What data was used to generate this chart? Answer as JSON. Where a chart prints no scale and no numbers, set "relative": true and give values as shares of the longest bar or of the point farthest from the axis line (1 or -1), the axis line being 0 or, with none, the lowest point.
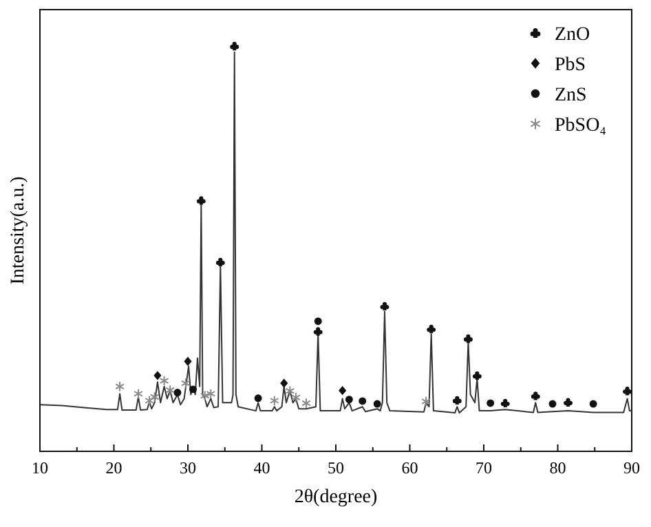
{
  "chart_data": {
    "type": "line",
    "xlabel": "2θ(degree)",
    "ylabel": "Intensity(a.u.)",
    "relative": true,
    "xlim": [
      10,
      90
    ],
    "xticks": [
      10,
      {
        "value": 15,
        "label": null
      },
      20,
      {
        "value": 25,
        "label": null
      },
      30,
      {
        "value": 35,
        "label": null
      },
      40,
      {
        "value": 45,
        "label": null
      },
      50,
      {
        "value": 55,
        "label": null
      },
      60,
      {
        "value": 65,
        "label": null
      },
      70,
      {
        "value": 75,
        "label": null
      },
      80,
      {
        "value": 85,
        "label": null
      },
      90
    ],
    "legend": "top right",
    "grid": false,
    "series": [
      {
        "color": "#333333",
        "marker": "none",
        "line_style": "solid",
        "x": [
          10,
          13,
          16,
          19,
          20.5,
          20.8,
          21.1,
          23.0,
          23.3,
          23.6,
          24.5,
          24.8,
          25.1,
          25.5,
          25.9,
          26.3,
          26.8,
          27.2,
          27.6,
          28.0,
          28.6,
          29.0,
          29.5,
          29.8,
          30.1,
          30.4,
          30.7,
          31.0,
          31.3,
          31.6,
          31.8,
          32.0,
          32.3,
          32.6,
          33.1,
          33.5,
          34.1,
          34.4,
          34.7,
          35.9,
          36.1,
          36.3,
          36.5,
          36.8,
          39.2,
          39.5,
          39.8,
          41.4,
          41.7,
          42.0,
          42.7,
          43.0,
          43.3,
          43.8,
          44.2,
          44.6,
          45.0,
          46.0,
          47.3,
          47.6,
          47.9,
          50.6,
          50.9,
          51.2,
          51.8,
          52.2,
          53.6,
          54.0,
          55.6,
          56.0,
          56.3,
          56.6,
          56.9,
          57.3,
          61.9,
          62.2,
          62.6,
          62.9,
          63.2,
          66.1,
          66.4,
          66.7,
          67.6,
          67.9,
          68.2,
          68.8,
          69.1,
          69.4,
          70.9,
          72.9,
          76.7,
          77.0,
          77.3,
          79.3,
          81.4,
          84.8,
          88.9,
          89.4,
          89.7,
          90
        ],
        "values": [
          0.115,
          0.113,
          0.108,
          0.103,
          0.103,
          0.142,
          0.102,
          0.102,
          0.134,
          0.102,
          0.103,
          0.122,
          0.105,
          0.12,
          0.171,
          0.12,
          0.16,
          0.13,
          0.15,
          0.12,
          0.14,
          0.115,
          0.13,
          0.17,
          0.21,
          0.14,
          0.16,
          0.14,
          0.23,
          0.16,
          0.61,
          0.14,
          0.13,
          0.11,
          0.13,
          0.108,
          0.11,
          0.46,
          0.12,
          0.12,
          0.14,
          0.985,
          0.14,
          0.11,
          0.1,
          0.12,
          0.1,
          0.1,
          0.11,
          0.1,
          0.11,
          0.16,
          0.12,
          0.15,
          0.12,
          0.13,
          0.105,
          0.105,
          0.11,
          0.29,
          0.1,
          0.1,
          0.13,
          0.105,
          0.12,
          0.1,
          0.11,
          0.098,
          0.105,
          0.1,
          0.12,
          0.345,
          0.12,
          0.1,
          0.097,
          0.12,
          0.11,
          0.29,
          0.1,
          0.095,
          0.11,
          0.095,
          0.11,
          0.27,
          0.14,
          0.12,
          0.18,
          0.1,
          0.1,
          0.103,
          0.096,
          0.12,
          0.096,
          0.098,
          0.1,
          0.096,
          0.096,
          0.13,
          0.1,
          0.1
        ]
      },
      {
        "type": "scatter",
        "name": "ZnO",
        "color": "#111111",
        "x": [
          31.8,
          34.4,
          36.3,
          47.6,
          56.6,
          62.9,
          66.4,
          67.9,
          69.1,
          72.9,
          77.0,
          81.4,
          89.4
        ],
        "values": [
          0.619,
          0.467,
          1.0,
          0.296,
          0.358,
          0.302,
          0.126,
          0.278,
          0.187,
          0.119,
          0.137,
          0.121,
          0.149
        ]
      },
      {
        "type": "scatter",
        "name": "PbS",
        "color": "#111111",
        "marker": "diamond",
        "x": [
          25.9,
          30.0,
          43.0,
          50.9
        ],
        "values": [
          0.187,
          0.222,
          0.168,
          0.15
        ]
      },
      {
        "type": "scatter",
        "name": "ZnS",
        "color": "#111111",
        "marker": "circle",
        "x": [
          28.6,
          30.7,
          39.5,
          47.6,
          51.8,
          53.6,
          55.6,
          70.9,
          79.3,
          84.8
        ],
        "values": [
          0.145,
          0.153,
          0.131,
          0.321,
          0.128,
          0.124,
          0.117,
          0.119,
          0.117,
          0.117
        ]
      },
      {
        "type": "scatter",
        "name": "PbSO₄",
        "color": "#888888",
        "marker": "cross",
        "x": [
          20.8,
          23.3,
          24.8,
          25.5,
          26.8,
          27.6,
          29.7,
          32.3,
          33.1,
          41.7,
          43.8,
          44.6,
          46.0,
          62.2
        ],
        "values": [
          0.16,
          0.142,
          0.125,
          0.134,
          0.174,
          0.151,
          0.168,
          0.137,
          0.142,
          0.125,
          0.149,
          0.133,
          0.119,
          0.123
        ]
      }
    ]
  }
}
